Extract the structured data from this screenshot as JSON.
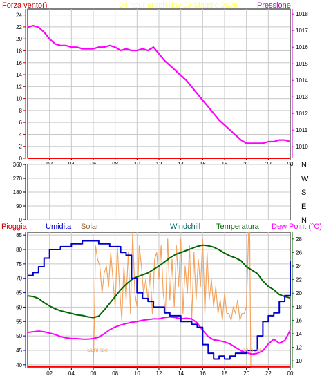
{
  "header": {
    "left": "Forza vento()",
    "center": "24 hour graph day   03 Maggio 2025",
    "right": "Pressione"
  },
  "middle": {
    "directions": [
      "N",
      "W",
      "S",
      "E",
      "N"
    ]
  },
  "bottom_header": {
    "pioggia": "Pioggia",
    "umidita": "Umidita",
    "solar": "Solar",
    "windchill": "Windchill",
    "temperatura": "Temperatura",
    "dewpoint": "Dew Point (°C)"
  },
  "annotations": {
    "sunrise": "SunRise",
    "sunset": "SunSet"
  },
  "colors": {
    "background": "#ffffff",
    "plot_bg": "#ffffff",
    "frame": "#000000",
    "grid": "#c8c8c8",
    "pressure": "#ff00ff",
    "wind": "#ff0000",
    "humidity": "#0000cc",
    "temperature": "#006600",
    "windchill": "#008080",
    "solar": "#f4a460",
    "dewpoint": "#ff00ff",
    "rain": "#ff0000",
    "header_left": "#cc0000",
    "header_center": "#ffff66",
    "header_right": "#cc00cc",
    "axis_left_top": "#cc0000",
    "axis_right_top": "#cc00cc",
    "axis_bottom_left": "#0000cc",
    "axis_bottom_right": "#006600",
    "label_umidita": "#0000cc",
    "label_solar": "#996633",
    "label_windchill": "#006666",
    "label_temperatura": "#006600",
    "label_dewpoint": "#ff00ff",
    "label_pioggia": "#cc0000"
  },
  "chart_data": [
    {
      "id": "top",
      "type": "line",
      "xlim": [
        0,
        24
      ],
      "x_ticks": [
        "02",
        "04",
        "06",
        "08",
        "10",
        "12",
        "14",
        "16",
        "18",
        "20",
        "22",
        "00"
      ],
      "ylim": [
        0,
        25
      ],
      "yticks_left": [
        "0",
        "2",
        "4",
        "6",
        "8",
        "10",
        "12",
        "14",
        "16",
        "18",
        "20",
        "22",
        "24"
      ],
      "ylim_right": [
        1009.3,
        1018.3
      ],
      "yticks_right": [
        "1010",
        "1011",
        "1012",
        "1013",
        "1014",
        "1015",
        "1016",
        "1017",
        "1018"
      ],
      "series": [
        {
          "name": "Pressione",
          "axis": "right",
          "x": [
            0.0,
            0.5,
            1.0,
            1.5,
            2.0,
            2.5,
            3.0,
            3.5,
            4.0,
            4.5,
            5.0,
            5.5,
            6.0,
            6.5,
            7.0,
            7.5,
            8.0,
            8.5,
            9.0,
            9.5,
            10.0,
            10.5,
            11.0,
            11.5,
            12.0,
            12.5,
            13.0,
            13.5,
            14.0,
            14.5,
            15.0,
            15.5,
            16.0,
            16.5,
            17.0,
            17.5,
            18.0,
            18.5,
            19.0,
            19.5,
            20.0,
            20.5,
            21.0,
            21.5,
            22.0,
            22.5,
            23.0,
            23.5,
            24.0
          ],
          "values": [
            1017.2,
            1017.3,
            1017.2,
            1016.9,
            1016.5,
            1016.2,
            1016.1,
            1016.1,
            1016.0,
            1016.0,
            1015.9,
            1015.9,
            1015.9,
            1016.0,
            1016.0,
            1016.1,
            1016.0,
            1015.8,
            1015.9,
            1015.8,
            1015.8,
            1015.9,
            1015.8,
            1016.0,
            1015.6,
            1015.2,
            1014.9,
            1014.6,
            1014.3,
            1014.0,
            1013.6,
            1013.2,
            1012.8,
            1012.4,
            1012.0,
            1011.6,
            1011.3,
            1011.0,
            1010.7,
            1010.4,
            1010.2,
            1010.2,
            1010.2,
            1010.2,
            1010.3,
            1010.3,
            1010.4,
            1010.4,
            1010.3
          ]
        },
        {
          "name": "Forza vento()",
          "axis": "left",
          "x": [
            0,
            24
          ],
          "values": [
            0.0,
            0.0
          ]
        }
      ]
    },
    {
      "id": "middle",
      "type": "scatter",
      "xlim": [
        0,
        24
      ],
      "ylim": [
        0,
        360
      ],
      "yticks": [
        "0",
        "90",
        "180",
        "270",
        "360"
      ],
      "series": []
    },
    {
      "id": "bottom",
      "type": "line",
      "xlim": [
        0,
        24
      ],
      "x_ticks": [
        "02",
        "04",
        "06",
        "08",
        "10",
        "12",
        "14",
        "16",
        "18",
        "20",
        "22",
        "00"
      ],
      "ylim_left": [
        39,
        86
      ],
      "yticks_left": [
        "40",
        "45",
        "50",
        "55",
        "60",
        "65",
        "70",
        "75",
        "80",
        "85"
      ],
      "ylim_right": [
        9,
        29
      ],
      "yticks_right": [
        "10",
        "12",
        "14",
        "16",
        "18",
        "20",
        "22",
        "24",
        "26",
        "28"
      ],
      "series": [
        {
          "name": "Umidita",
          "axis": "left",
          "x": [
            0.0,
            0.5,
            1.0,
            1.5,
            2.0,
            2.5,
            3.0,
            3.5,
            4.0,
            4.5,
            5.0,
            5.5,
            6.0,
            6.5,
            7.0,
            7.5,
            8.0,
            8.5,
            9.0,
            9.5,
            10.0,
            10.5,
            11.0,
            11.5,
            12.0,
            12.5,
            13.0,
            13.5,
            14.0,
            14.5,
            15.0,
            15.5,
            16.0,
            16.5,
            17.0,
            17.5,
            18.0,
            18.5,
            19.0,
            19.5,
            20.0,
            20.5,
            21.0,
            21.5,
            22.0,
            22.5,
            23.0,
            23.5,
            24.0
          ],
          "values": [
            71,
            72,
            74,
            77,
            80,
            80,
            81,
            81,
            82,
            82,
            83,
            83,
            83,
            82,
            82,
            81,
            81,
            79,
            78,
            70,
            65,
            63,
            62,
            60,
            60,
            58,
            57,
            57,
            55,
            55,
            54,
            53,
            47,
            44,
            42,
            43,
            42,
            43,
            44,
            44,
            45,
            45,
            50,
            55,
            57,
            58,
            62,
            64,
            76
          ]
        },
        {
          "name": "Temperatura",
          "axis": "right",
          "x": [
            0.0,
            0.5,
            1.0,
            1.5,
            2.0,
            2.5,
            3.0,
            3.5,
            4.0,
            4.5,
            5.0,
            5.5,
            6.0,
            6.5,
            7.0,
            7.5,
            8.0,
            8.5,
            9.0,
            9.5,
            10.0,
            10.5,
            11.0,
            11.5,
            12.0,
            12.5,
            13.0,
            13.5,
            14.0,
            14.5,
            15.0,
            15.5,
            16.0,
            16.5,
            17.0,
            17.5,
            18.0,
            18.5,
            19.0,
            19.5,
            20.0,
            20.5,
            21.0,
            21.5,
            22.0,
            22.5,
            23.0,
            23.5,
            24.0
          ],
          "values": [
            19.6,
            19.5,
            19.2,
            18.6,
            18.1,
            17.7,
            17.4,
            17.2,
            17.0,
            16.8,
            16.7,
            16.5,
            16.4,
            16.6,
            17.5,
            18.5,
            19.5,
            20.5,
            21.3,
            22.0,
            22.4,
            22.7,
            23.0,
            23.5,
            24.0,
            24.6,
            25.2,
            25.7,
            26.0,
            26.3,
            26.6,
            26.9,
            27.1,
            27.0,
            26.8,
            26.4,
            25.9,
            25.5,
            25.2,
            24.8,
            23.9,
            23.4,
            22.9,
            21.8,
            21.0,
            20.5,
            19.8,
            19.5,
            19.3
          ]
        },
        {
          "name": "Dew Point",
          "axis": "right",
          "x": [
            0.0,
            0.5,
            1.0,
            1.5,
            2.0,
            2.5,
            3.0,
            3.5,
            4.0,
            4.5,
            5.0,
            5.5,
            6.0,
            6.5,
            7.0,
            7.5,
            8.0,
            8.5,
            9.0,
            9.5,
            10.0,
            10.5,
            11.0,
            11.5,
            12.0,
            12.5,
            13.0,
            13.5,
            14.0,
            14.5,
            15.0,
            15.5,
            16.0,
            16.5,
            17.0,
            17.5,
            18.0,
            18.5,
            19.0,
            19.5,
            20.0,
            20.5,
            21.0,
            21.5,
            22.0,
            22.5,
            23.0,
            23.5,
            24.0
          ],
          "values": [
            14.2,
            14.3,
            14.4,
            14.3,
            14.1,
            13.9,
            13.6,
            13.4,
            13.3,
            13.3,
            13.2,
            13.2,
            13.3,
            13.5,
            14.0,
            14.6,
            15.0,
            15.3,
            15.5,
            15.7,
            15.8,
            16.0,
            16.1,
            16.2,
            16.2,
            16.4,
            16.5,
            16.4,
            16.2,
            16.3,
            16.2,
            15.6,
            14.5,
            13.6,
            13.1,
            13.0,
            12.8,
            12.5,
            12.0,
            11.5,
            11.2,
            11.0,
            11.1,
            11.5,
            12.5,
            13.2,
            12.6,
            13.0,
            14.5
          ]
        },
        {
          "name": "Solar",
          "axis": "right",
          "x": [
            0.0,
            6.0,
            6.1,
            6.2,
            6.4,
            6.6,
            6.8,
            7.0,
            7.2,
            7.4,
            7.6,
            7.8,
            8.0,
            8.2,
            8.4,
            8.6,
            8.8,
            9.0,
            9.2,
            9.4,
            9.6,
            9.8,
            10.0,
            10.2,
            10.4,
            10.6,
            10.8,
            11.0,
            11.2,
            11.4,
            11.6,
            11.8,
            12.0,
            12.2,
            12.4,
            12.6,
            12.8,
            13.0,
            13.2,
            13.4,
            13.6,
            13.8,
            14.0,
            14.2,
            14.4,
            14.6,
            14.8,
            15.0,
            15.2,
            15.4,
            15.6,
            15.8,
            16.0,
            16.2,
            16.4,
            16.6,
            16.8,
            17.0,
            17.2,
            17.4,
            17.6,
            17.8,
            18.0,
            18.2,
            18.4,
            18.6,
            18.8,
            19.0,
            19.2,
            19.4,
            19.6,
            19.8,
            20.0,
            20.2,
            20.3,
            20.4,
            20.6,
            24.0
          ],
          "values": [
            9,
            9,
            16,
            27,
            25,
            24,
            20,
            23,
            24,
            21,
            26,
            22,
            18,
            27,
            21,
            16,
            24,
            19,
            26,
            17,
            29,
            20,
            18,
            27,
            24,
            20,
            22,
            19,
            23,
            17,
            25,
            26,
            22,
            27,
            20,
            17,
            28,
            19,
            25,
            18,
            27,
            21,
            28,
            17,
            24,
            20,
            27,
            16,
            26,
            19,
            25,
            21,
            28,
            17,
            26,
            19,
            22,
            18,
            21,
            17,
            19,
            16,
            20,
            17,
            17,
            16,
            18,
            17,
            19,
            16,
            17,
            17,
            18,
            29,
            29,
            9,
            9,
            9
          ]
        },
        {
          "name": "Pioggia",
          "axis": "left",
          "x": [
            0,
            24
          ],
          "values": [
            39.3,
            39.3
          ]
        }
      ]
    }
  ]
}
